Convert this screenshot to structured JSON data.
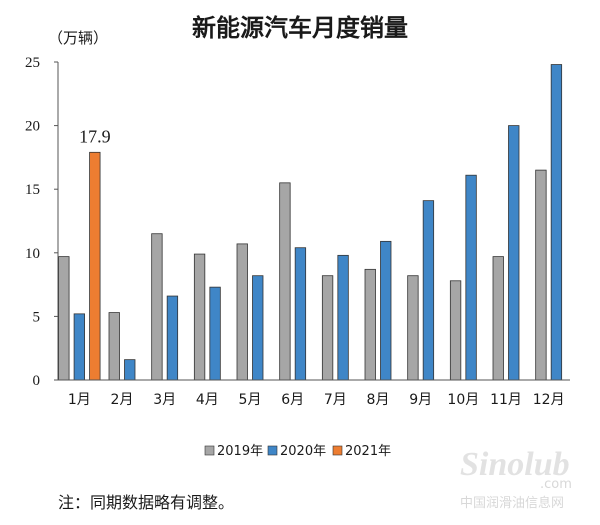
{
  "chart_data": {
    "type": "bar",
    "title": "新能源汽车月度销量",
    "unit_label": "（万辆）",
    "categories": [
      "1月",
      "2月",
      "3月",
      "4月",
      "5月",
      "6月",
      "7月",
      "8月",
      "9月",
      "10月",
      "11月",
      "12月"
    ],
    "series": [
      {
        "name": "2019年",
        "color": "#a6a6a6",
        "values": [
          9.7,
          5.3,
          11.5,
          9.9,
          10.7,
          15.5,
          8.2,
          8.7,
          8.2,
          7.8,
          9.7,
          16.5
        ]
      },
      {
        "name": "2020年",
        "color": "#3f86c7",
        "values": [
          5.2,
          1.6,
          6.6,
          7.3,
          8.2,
          10.4,
          9.8,
          10.9,
          14.1,
          16.1,
          20.0,
          24.8
        ]
      },
      {
        "name": "2021年",
        "color": "#ed7d31",
        "values": [
          17.9,
          null,
          null,
          null,
          null,
          null,
          null,
          null,
          null,
          null,
          null,
          null
        ]
      }
    ],
    "ylim": [
      0,
      25
    ],
    "yticks": [
      0,
      5,
      10,
      15,
      20,
      25
    ],
    "annotations": [
      {
        "category": "1月",
        "series": "2021年",
        "text": "17.9"
      }
    ],
    "legend_position": "bottom",
    "grid": false
  },
  "note": "注：同期数据略有调整。",
  "watermark": {
    "logo_text": "Sinolub",
    "domain_text": ".com",
    "caption": "中国润滑油信息网"
  }
}
